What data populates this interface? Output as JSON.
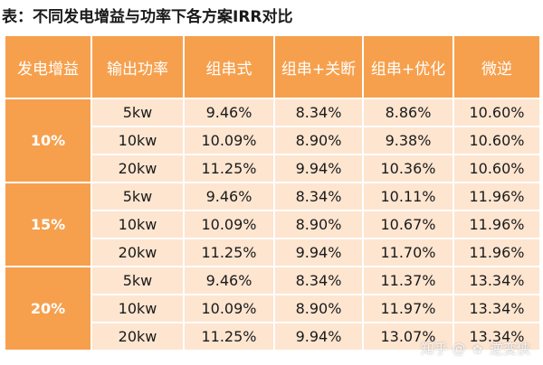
{
  "caption": "表：不同发电增益与功率下各方案IRR对比",
  "headers": [
    "发电增益",
    "输出功率",
    "组串式",
    "组串+关断",
    "组串+优化",
    "微逆"
  ],
  "groups": [
    {
      "gain": "10%",
      "rows": [
        [
          "5kw",
          "9.46%",
          "8.34%",
          "8.86%",
          "10.60%"
        ],
        [
          "10kw",
          "10.09%",
          "8.90%",
          "9.38%",
          "10.60%"
        ],
        [
          "20kw",
          "11.25%",
          "9.94%",
          "10.36%",
          "10.60%"
        ]
      ]
    },
    {
      "gain": "15%",
      "rows": [
        [
          "5kw",
          "9.46%",
          "8.34%",
          "10.11%",
          "11.96%"
        ],
        [
          "10kw",
          "10.09%",
          "8.90%",
          "10.67%",
          "11.96%"
        ],
        [
          "20kw",
          "11.25%",
          "9.94%",
          "11.70%",
          "11.96%"
        ]
      ]
    },
    {
      "gain": "20%",
      "rows": [
        [
          "5kw",
          "9.46%",
          "8.34%",
          "11.37%",
          "13.34%"
        ],
        [
          "10kw",
          "10.09%",
          "8.90%",
          "11.97%",
          "13.34%"
        ],
        [
          "20kw",
          "11.25%",
          "9.94%",
          "13.07%",
          "13.34%"
        ]
      ]
    }
  ],
  "watermark": {
    "site": "知乎",
    "separator": "@",
    "author": "逆变侠",
    "icon": "paw-icon"
  },
  "colors": {
    "header_bg": "#f6a04d",
    "cell_bg": "#fde5d0",
    "header_text": "#ffffff",
    "cell_text": "#1a1a1a"
  }
}
